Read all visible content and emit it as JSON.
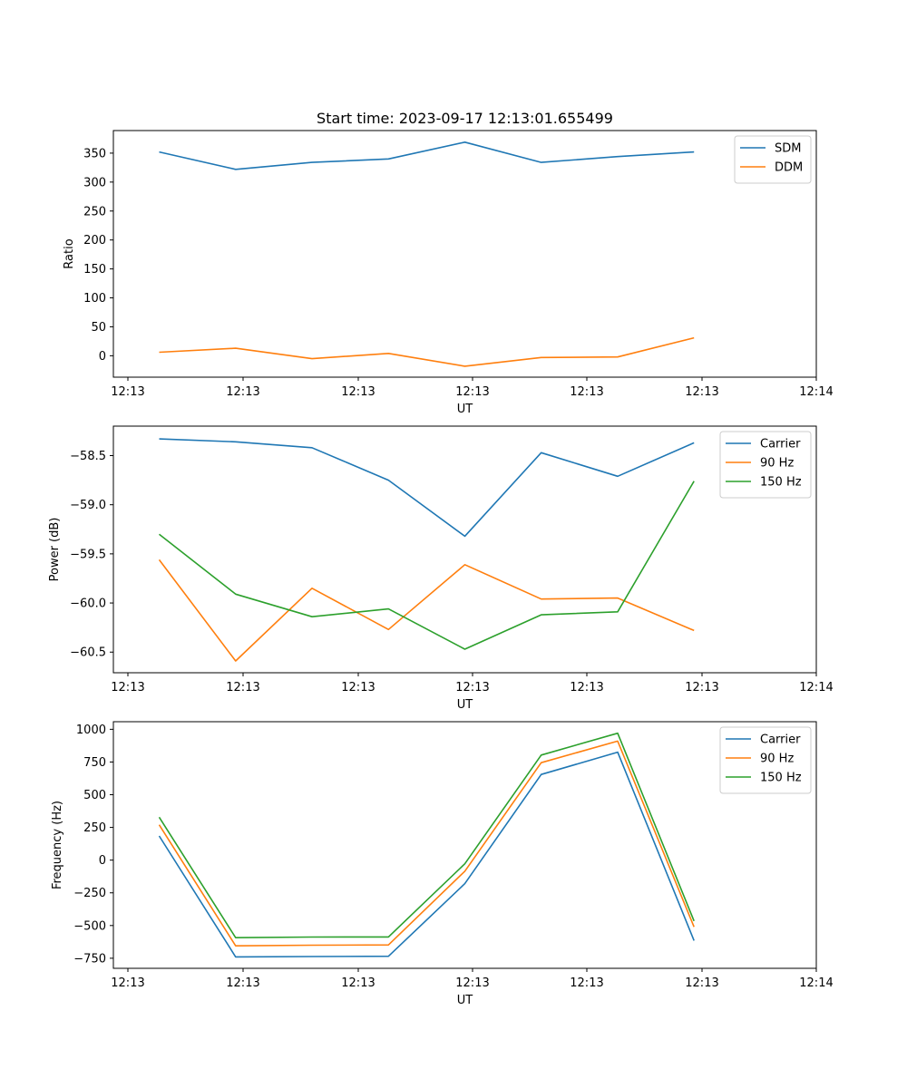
{
  "chart_data": [
    {
      "type": "line",
      "title": "Start time: 2023-09-17 12:13:01.655499",
      "xlabel": "UT",
      "ylabel": "Ratio",
      "x_tick_labels": [
        "12:13",
        "12:13",
        "12:13",
        "12:13",
        "12:13",
        "12:13",
        "12:14"
      ],
      "y_ticks": [
        0,
        50,
        100,
        150,
        200,
        250,
        300,
        350
      ],
      "xlim": [
        -0.6,
        8.6
      ],
      "ylim": [
        -37,
        389
      ],
      "legend": "top-right",
      "series": [
        {
          "name": "SDM",
          "color": "#1f77b4",
          "x": [
            0,
            1,
            2,
            3,
            4,
            5,
            6,
            7
          ],
          "values": [
            352,
            322,
            334,
            340,
            369,
            334,
            344,
            352
          ]
        },
        {
          "name": "DDM",
          "color": "#ff7f0e",
          "x": [
            0,
            1,
            2,
            3,
            4,
            5,
            6,
            7
          ],
          "values": [
            6,
            13,
            -5,
            4,
            -18,
            -3,
            -2,
            31
          ]
        }
      ]
    },
    {
      "type": "line",
      "title": "",
      "xlabel": "UT",
      "ylabel": "Power (dB)",
      "x_tick_labels": [
        "12:13",
        "12:13",
        "12:13",
        "12:13",
        "12:13",
        "12:13",
        "12:14"
      ],
      "y_ticks": [
        -58.5,
        -59.0,
        -59.5,
        -60.0,
        -60.5
      ],
      "y_tick_labels": [
        "−58.5",
        "−59.0",
        "−59.5",
        "−60.0",
        "−60.5"
      ],
      "xlim": [
        -0.6,
        8.6
      ],
      "ylim": [
        -60.71,
        -58.2
      ],
      "legend": "top-right",
      "series": [
        {
          "name": "Carrier",
          "color": "#1f77b4",
          "x": [
            0,
            1,
            2,
            3,
            4,
            5,
            6,
            7
          ],
          "values": [
            -58.33,
            -58.36,
            -58.42,
            -58.75,
            -59.32,
            -58.47,
            -58.71,
            -58.37
          ]
        },
        {
          "name": "90 Hz",
          "color": "#ff7f0e",
          "x": [
            0,
            1,
            2,
            3,
            4,
            5,
            6,
            7
          ],
          "values": [
            -59.56,
            -60.59,
            -59.85,
            -60.27,
            -59.61,
            -59.96,
            -59.95,
            -60.28
          ]
        },
        {
          "name": "150 Hz",
          "color": "#2ca02c",
          "x": [
            0,
            1,
            2,
            3,
            4,
            5,
            6,
            7
          ],
          "values": [
            -59.3,
            -59.91,
            -60.14,
            -60.06,
            -60.47,
            -60.12,
            -60.09,
            -58.76
          ]
        }
      ]
    },
    {
      "type": "line",
      "title": "",
      "xlabel": "UT",
      "ylabel": "Frequency (Hz)",
      "x_tick_labels": [
        "12:13",
        "12:13",
        "12:13",
        "12:13",
        "12:13",
        "12:13",
        "12:14"
      ],
      "y_ticks": [
        1000,
        750,
        500,
        250,
        0,
        -250,
        -500,
        -750
      ],
      "y_tick_labels": [
        "1000",
        "750",
        "500",
        "250",
        "0",
        "−250",
        "−500",
        "−750"
      ],
      "xlim": [
        -0.6,
        8.6
      ],
      "ylim": [
        -827,
        1058
      ],
      "legend": "top-right",
      "series": [
        {
          "name": "Carrier",
          "color": "#1f77b4",
          "x": [
            0,
            1,
            2,
            3,
            4,
            5,
            6,
            7
          ],
          "values": [
            185,
            -740,
            -737,
            -735,
            -180,
            655,
            825,
            -615
          ]
        },
        {
          "name": "90 Hz",
          "color": "#ff7f0e",
          "x": [
            0,
            1,
            2,
            3,
            4,
            5,
            6,
            7
          ],
          "values": [
            270,
            -655,
            -650,
            -648,
            -85,
            745,
            910,
            -510
          ]
        },
        {
          "name": "150 Hz",
          "color": "#2ca02c",
          "x": [
            0,
            1,
            2,
            3,
            4,
            5,
            6,
            7
          ],
          "values": [
            328,
            -593,
            -588,
            -587,
            -28,
            803,
            970,
            -465
          ]
        }
      ]
    }
  ]
}
